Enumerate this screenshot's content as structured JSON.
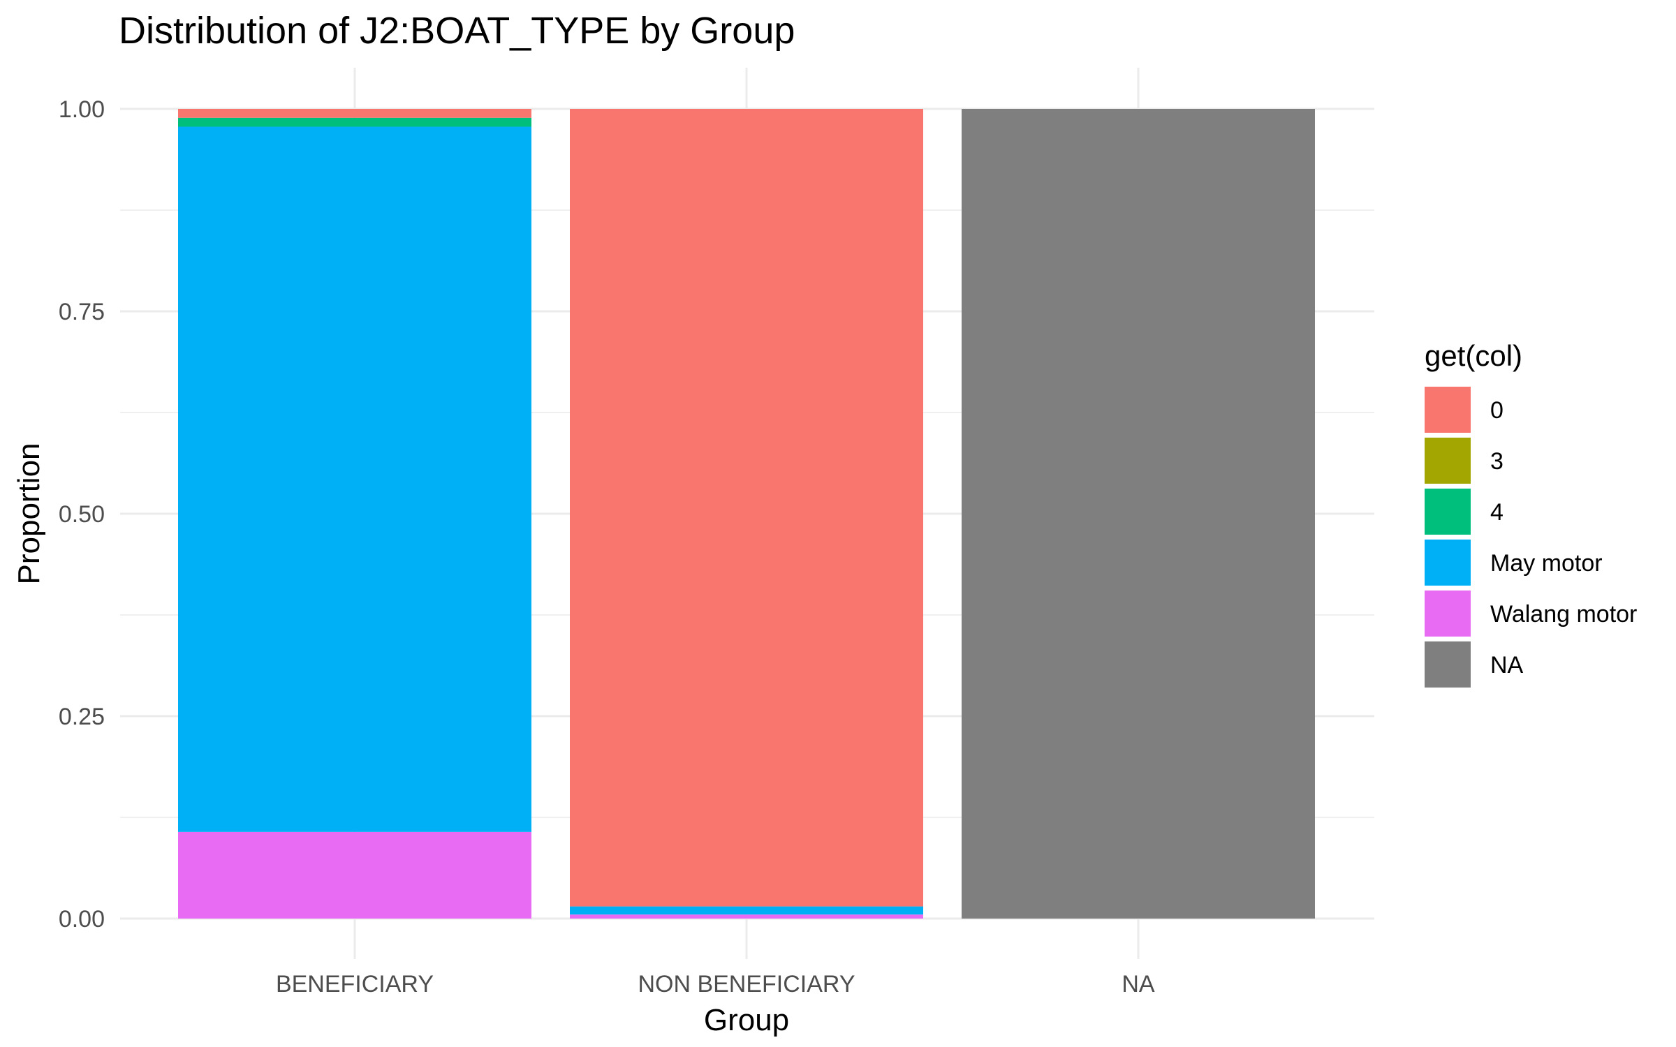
{
  "chart_data": {
    "type": "bar",
    "stacked": true,
    "title": "Distribution of J2:BOAT_TYPE by Group",
    "xlabel": "Group",
    "ylabel": "Proportion",
    "ylim": [
      0,
      1
    ],
    "yticks": [
      "0.00",
      "0.25",
      "0.50",
      "0.75",
      "1.00"
    ],
    "ytick_values": [
      0,
      0.25,
      0.5,
      0.75,
      1.0
    ],
    "grid": true,
    "categories": [
      "BENEFICIARY",
      "NON BENEFICIARY",
      "NA"
    ],
    "legend": {
      "title": "get(col)",
      "position": "right"
    },
    "stack_order": [
      "Walang motor",
      "May motor",
      "4",
      "3",
      "0",
      "NA"
    ],
    "series": [
      {
        "name": "0",
        "color": "#F8766D",
        "values": [
          0.011,
          0.985,
          0
        ]
      },
      {
        "name": "3",
        "color": "#A3A500",
        "values": [
          0.0,
          0.0,
          0
        ]
      },
      {
        "name": "4",
        "color": "#00BF7D",
        "values": [
          0.011,
          0.0,
          0
        ]
      },
      {
        "name": "May motor",
        "color": "#00B0F6",
        "values": [
          0.871,
          0.01,
          0
        ]
      },
      {
        "name": "Walang motor",
        "color": "#E76BF3",
        "values": [
          0.107,
          0.005,
          0
        ]
      },
      {
        "name": "NA",
        "color": "#7F7F7F",
        "values": [
          0,
          0,
          1.0
        ]
      }
    ]
  }
}
